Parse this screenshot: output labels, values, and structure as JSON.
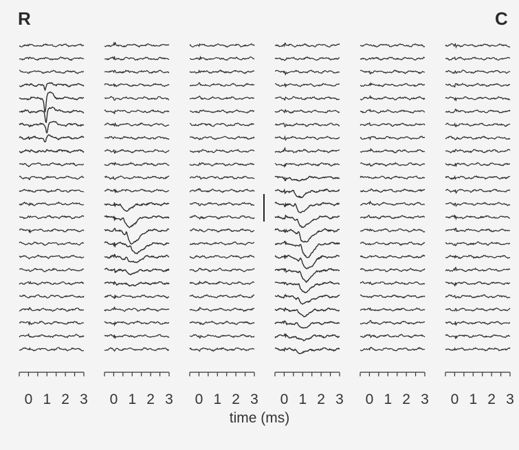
{
  "chart_data": {
    "type": "line",
    "title": "",
    "corner_labels": {
      "left": "R",
      "right": "C"
    },
    "xlabel": "time (ms)",
    "ylabel": "",
    "xlim": [
      -0.5,
      3
    ],
    "x_ticks": [
      0,
      1,
      2,
      3
    ],
    "panels_count": 6,
    "traces_per_panel": 24,
    "scale_bar": {
      "panel": 4
    },
    "panels": [
      {
        "events": [
          {
            "trace": 3,
            "t": 0.9,
            "amp": 1.1,
            "shape": "spike"
          },
          {
            "trace": 4,
            "t": 0.9,
            "amp": 2.6,
            "shape": "spike"
          },
          {
            "trace": 5,
            "t": 0.95,
            "amp": 2.2,
            "shape": "spike"
          },
          {
            "trace": 6,
            "t": 1.0,
            "amp": 1.4,
            "shape": "spike"
          },
          {
            "trace": 7,
            "t": 0.9,
            "amp": 0.7,
            "shape": "spike"
          },
          {
            "trace": 8,
            "t": 0.9,
            "amp": 0.35,
            "shape": "spike"
          }
        ]
      },
      {
        "events": [
          {
            "trace": 12,
            "t": 0.35,
            "amp": 0.9,
            "shape": "slow"
          },
          {
            "trace": 13,
            "t": 0.5,
            "amp": 1.4,
            "shape": "slow"
          },
          {
            "trace": 14,
            "t": 0.7,
            "amp": 2.0,
            "shape": "slow"
          },
          {
            "trace": 15,
            "t": 0.9,
            "amp": 1.5,
            "shape": "slow"
          },
          {
            "trace": 16,
            "t": 0.7,
            "amp": 0.9,
            "shape": "slow"
          },
          {
            "trace": 17,
            "t": 0.6,
            "amp": 0.5,
            "shape": "slow"
          },
          {
            "trace": 18,
            "t": 0.5,
            "amp": 0.3,
            "shape": "slow"
          }
        ]
      },
      {
        "events": []
      },
      {
        "events": [
          {
            "trace": 10,
            "t": 0.3,
            "amp": 0.5,
            "shape": "slow"
          },
          {
            "trace": 11,
            "t": 0.5,
            "amp": 0.9,
            "shape": "slow"
          },
          {
            "trace": 12,
            "t": 0.6,
            "amp": 1.2,
            "shape": "slow"
          },
          {
            "trace": 13,
            "t": 0.7,
            "amp": 1.5,
            "shape": "slow"
          },
          {
            "trace": 14,
            "t": 0.8,
            "amp": 1.8,
            "shape": "slow"
          },
          {
            "trace": 15,
            "t": 0.9,
            "amp": 2.0,
            "shape": "slow"
          },
          {
            "trace": 16,
            "t": 0.9,
            "amp": 1.8,
            "shape": "slow"
          },
          {
            "trace": 17,
            "t": 0.85,
            "amp": 1.6,
            "shape": "slow"
          },
          {
            "trace": 18,
            "t": 0.8,
            "amp": 1.3,
            "shape": "slow"
          },
          {
            "trace": 19,
            "t": 0.75,
            "amp": 1.1,
            "shape": "slow"
          },
          {
            "trace": 20,
            "t": 0.7,
            "amp": 0.9,
            "shape": "slow"
          },
          {
            "trace": 21,
            "t": 0.65,
            "amp": 0.7,
            "shape": "slow"
          },
          {
            "trace": 22,
            "t": 0.6,
            "amp": 0.6,
            "shape": "slow"
          },
          {
            "trace": 23,
            "t": 0.6,
            "amp": 0.5,
            "shape": "slow"
          }
        ]
      },
      {
        "events": []
      },
      {
        "events": []
      }
    ]
  }
}
